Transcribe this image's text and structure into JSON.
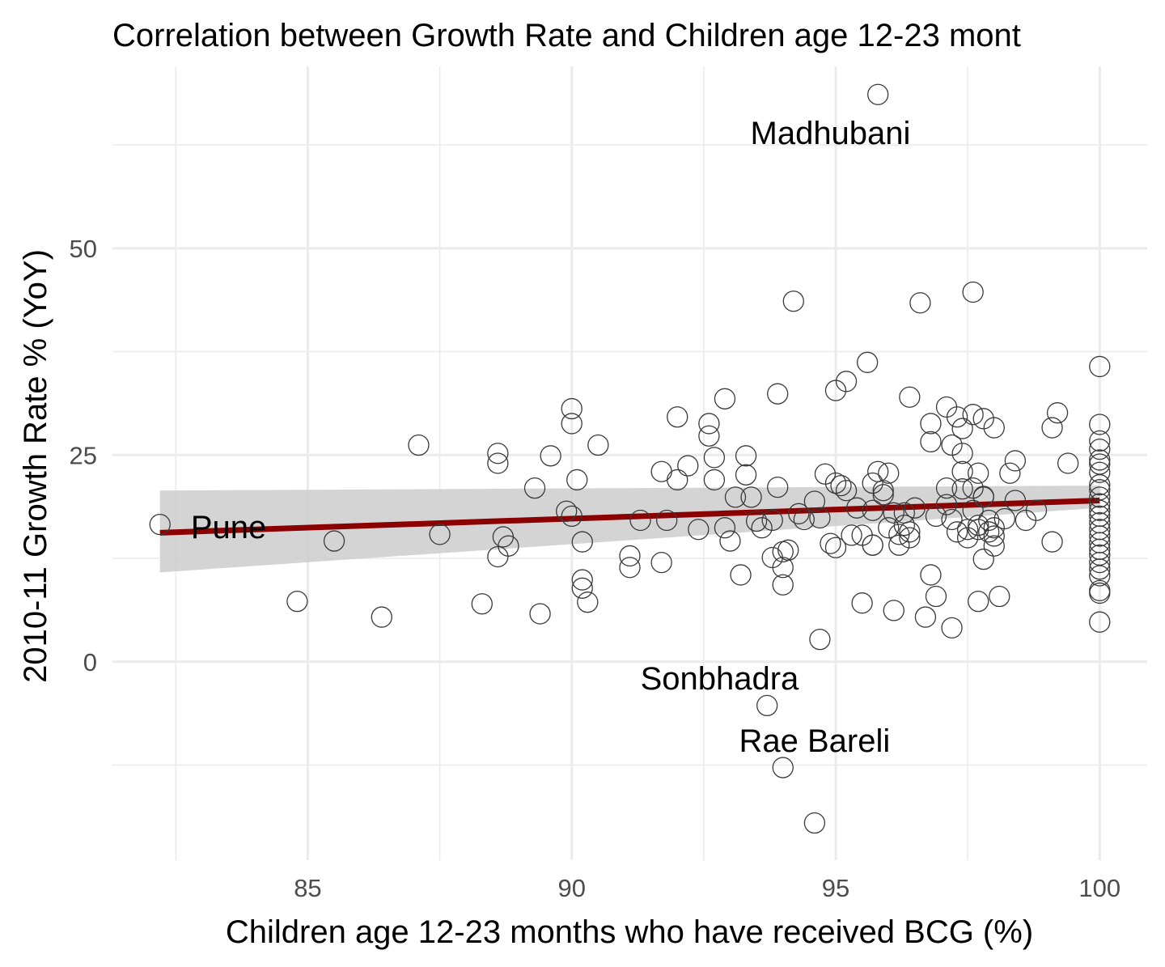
{
  "chart_data": {
    "type": "scatter",
    "title": "Correlation between Growth Rate and Children age 12-23 mont",
    "xlabel": "Children age 12-23 months who have received BCG (%)",
    "ylabel": "2010-11 Growth Rate % (YoY)",
    "xlim": [
      81.3,
      100.9
    ],
    "ylim": [
      -24,
      72
    ],
    "x_ticks": [
      85,
      90,
      95,
      100
    ],
    "y_ticks": [
      0,
      25,
      50
    ],
    "grid": true,
    "colors": {
      "points": "#333333",
      "trend_line": "#8b0000",
      "confidence_band": "#cccccc",
      "grid": "#ebebeb"
    },
    "trend": {
      "x": [
        82.2,
        100
      ],
      "y": [
        15.6,
        19.5
      ],
      "ci_lower": [
        10.8,
        18.6
      ],
      "ci_upper": [
        20.7,
        21.3
      ]
    },
    "annotations": [
      {
        "label": "Pune",
        "x": 83.5,
        "y": 16.3
      },
      {
        "label": "Madhubani",
        "x": 94.9,
        "y": 64.0
      },
      {
        "label": "Sonbhadra",
        "x": 92.8,
        "y": -2.0
      },
      {
        "label": "Rae Bareli",
        "x": 94.6,
        "y": -9.5
      }
    ],
    "points": [
      [
        82.2,
        16.6
      ],
      [
        84.8,
        7.3
      ],
      [
        85.5,
        14.6
      ],
      [
        86.4,
        5.4
      ],
      [
        87.1,
        26.2
      ],
      [
        87.5,
        15.4
      ],
      [
        88.3,
        7.0
      ],
      [
        88.6,
        25.2
      ],
      [
        88.6,
        24.0
      ],
      [
        88.6,
        12.7
      ],
      [
        88.7,
        15.1
      ],
      [
        88.8,
        14.0
      ],
      [
        89.3,
        21.0
      ],
      [
        89.4,
        5.8
      ],
      [
        89.6,
        24.9
      ],
      [
        89.9,
        18.2
      ],
      [
        90.0,
        30.6
      ],
      [
        90.0,
        28.8
      ],
      [
        90.0,
        17.6
      ],
      [
        90.1,
        22.0
      ],
      [
        90.2,
        14.5
      ],
      [
        90.2,
        9.9
      ],
      [
        90.2,
        8.9
      ],
      [
        90.3,
        7.2
      ],
      [
        90.5,
        26.2
      ],
      [
        91.1,
        12.8
      ],
      [
        91.1,
        11.4
      ],
      [
        91.3,
        17.1
      ],
      [
        91.7,
        23.0
      ],
      [
        91.7,
        12.0
      ],
      [
        91.8,
        17.1
      ],
      [
        92.0,
        29.6
      ],
      [
        92.0,
        22.0
      ],
      [
        92.2,
        23.7
      ],
      [
        92.4,
        16.0
      ],
      [
        92.6,
        28.8
      ],
      [
        92.6,
        27.3
      ],
      [
        92.7,
        24.7
      ],
      [
        92.7,
        22.0
      ],
      [
        92.9,
        31.8
      ],
      [
        92.9,
        16.2
      ],
      [
        93.0,
        14.6
      ],
      [
        93.1,
        19.9
      ],
      [
        93.2,
        10.5
      ],
      [
        93.3,
        24.9
      ],
      [
        93.3,
        22.6
      ],
      [
        93.4,
        19.9
      ],
      [
        93.5,
        17.0
      ],
      [
        93.6,
        16.2
      ],
      [
        93.7,
        -5.3
      ],
      [
        93.8,
        12.6
      ],
      [
        93.8,
        17.1
      ],
      [
        93.9,
        21.1
      ],
      [
        93.9,
        32.4
      ],
      [
        94.0,
        11.4
      ],
      [
        94.0,
        9.3
      ],
      [
        94.0,
        13.3
      ],
      [
        94.0,
        -12.8
      ],
      [
        94.1,
        13.5
      ],
      [
        94.2,
        43.6
      ],
      [
        94.3,
        17.9
      ],
      [
        94.4,
        17.2
      ],
      [
        94.6,
        19.4
      ],
      [
        94.6,
        -19.5
      ],
      [
        94.7,
        17.4
      ],
      [
        94.7,
        2.7
      ],
      [
        94.8,
        22.7
      ],
      [
        94.9,
        14.3
      ],
      [
        95.0,
        13.8
      ],
      [
        95.0,
        21.6
      ],
      [
        95.0,
        32.8
      ],
      [
        95.1,
        21.3
      ],
      [
        95.2,
        33.9
      ],
      [
        95.2,
        20.7
      ],
      [
        95.3,
        15.3
      ],
      [
        95.4,
        18.6
      ],
      [
        95.5,
        7.1
      ],
      [
        95.5,
        15.3
      ],
      [
        95.6,
        36.2
      ],
      [
        95.7,
        18.3
      ],
      [
        95.7,
        14.1
      ],
      [
        95.7,
        14.1
      ],
      [
        95.7,
        21.6
      ],
      [
        95.8,
        68.6
      ],
      [
        95.8,
        23.0
      ],
      [
        95.9,
        20.2
      ],
      [
        95.9,
        20.7
      ],
      [
        96.0,
        22.8
      ],
      [
        96.0,
        16.2
      ],
      [
        96.1,
        18.0
      ],
      [
        96.1,
        6.2
      ],
      [
        96.2,
        15.4
      ],
      [
        96.2,
        14.1
      ],
      [
        96.3,
        18.0
      ],
      [
        96.3,
        16.5
      ],
      [
        96.4,
        15.0
      ],
      [
        96.4,
        32.0
      ],
      [
        96.4,
        15.7
      ],
      [
        96.5,
        18.6
      ],
      [
        96.6,
        43.4
      ],
      [
        96.7,
        5.4
      ],
      [
        96.8,
        28.8
      ],
      [
        96.8,
        26.6
      ],
      [
        96.8,
        10.5
      ],
      [
        96.9,
        7.9
      ],
      [
        96.9,
        17.6
      ],
      [
        97.1,
        21.0
      ],
      [
        97.1,
        30.8
      ],
      [
        97.1,
        19.0
      ],
      [
        97.2,
        26.2
      ],
      [
        97.2,
        17.2
      ],
      [
        97.2,
        4.1
      ],
      [
        97.3,
        15.7
      ],
      [
        97.3,
        29.6
      ],
      [
        97.4,
        28.2
      ],
      [
        97.4,
        25.2
      ],
      [
        97.4,
        20.9
      ],
      [
        97.4,
        23.0
      ],
      [
        97.5,
        16.0
      ],
      [
        97.5,
        15.0
      ],
      [
        97.6,
        21.0
      ],
      [
        97.6,
        44.7
      ],
      [
        97.6,
        29.9
      ],
      [
        97.6,
        18.3
      ],
      [
        97.7,
        22.8
      ],
      [
        97.7,
        16.5
      ],
      [
        97.7,
        16.0
      ],
      [
        97.7,
        7.3
      ],
      [
        97.8,
        29.4
      ],
      [
        97.8,
        12.4
      ],
      [
        97.8,
        19.9
      ],
      [
        97.8,
        20.0
      ],
      [
        97.9,
        17.1
      ],
      [
        97.9,
        15.7
      ],
      [
        98.0,
        28.3
      ],
      [
        98.0,
        16.2
      ],
      [
        98.0,
        15.2
      ],
      [
        98.0,
        14.0
      ],
      [
        98.1,
        7.9
      ],
      [
        98.2,
        17.3
      ],
      [
        98.3,
        22.8
      ],
      [
        98.4,
        24.3
      ],
      [
        98.4,
        19.5
      ],
      [
        98.6,
        17.1
      ],
      [
        98.8,
        18.3
      ],
      [
        99.1,
        28.3
      ],
      [
        99.1,
        14.5
      ],
      [
        99.2,
        30.1
      ],
      [
        99.4,
        24.0
      ],
      [
        100,
        35.7
      ],
      [
        100,
        28.7
      ],
      [
        100,
        26.7
      ],
      [
        100,
        25.7
      ],
      [
        100,
        24.4
      ],
      [
        100,
        23.9
      ],
      [
        100,
        22.9
      ],
      [
        100,
        21.4
      ],
      [
        100,
        20.8
      ],
      [
        100,
        19.9
      ],
      [
        100,
        19.1
      ],
      [
        100,
        18.3
      ],
      [
        100,
        17.6
      ],
      [
        100,
        16.8
      ],
      [
        100,
        16.0
      ],
      [
        100,
        15.2
      ],
      [
        100,
        14.4
      ],
      [
        100,
        13.6
      ],
      [
        100,
        12.9
      ],
      [
        100,
        12.0
      ],
      [
        100,
        11.2
      ],
      [
        100,
        10.4
      ],
      [
        100,
        8.6
      ],
      [
        100,
        8.3
      ],
      [
        100,
        4.8
      ]
    ]
  }
}
